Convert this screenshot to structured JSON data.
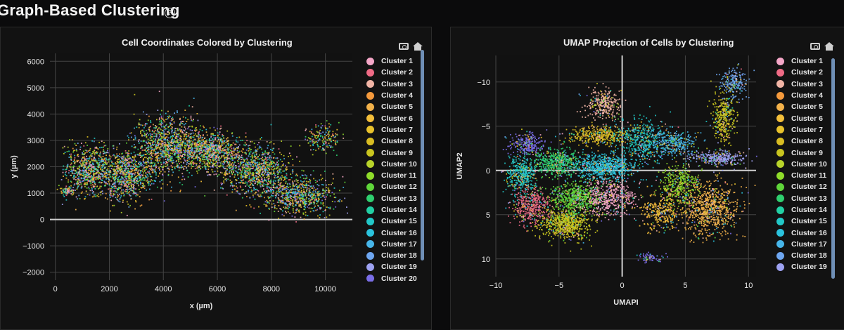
{
  "header": {
    "title": "Graph-Based Clustering",
    "help_icon": "?"
  },
  "legend_labels": [
    "Cluster 1",
    "Cluster 2",
    "Cluster 3",
    "Cluster 4",
    "Cluster 5",
    "Cluster 6",
    "Cluster 7",
    "Cluster 8",
    "Cluster 9",
    "Cluster 10",
    "Cluster 11",
    "Cluster 12",
    "Cluster 13",
    "Cluster 14",
    "Cluster 15",
    "Cluster 16",
    "Cluster 17",
    "Cluster 18",
    "Cluster 19",
    "Cluster 20"
  ],
  "palette": [
    "#f5a7c8",
    "#f06b86",
    "#f2b5a6",
    "#f59a3c",
    "#f3b24a",
    "#f4bf3a",
    "#e8c22c",
    "#d9bd22",
    "#c9c51f",
    "#b9d42a",
    "#8fdc2a",
    "#5fd63a",
    "#2fcf6f",
    "#22d0a4",
    "#22c8c8",
    "#2bc3dd",
    "#47b6ea",
    "#6ea6f0",
    "#9ea2f2",
    "#7a6ee8"
  ],
  "chart_data": [
    {
      "type": "scatter",
      "title": "Cell Coordinates Colored by Clustering",
      "xlabel": "x (µm)",
      "ylabel": "y (µm)",
      "xlim": [
        -200,
        11000
      ],
      "ylim": [
        6300,
        -2300
      ],
      "y_reversed": true,
      "x_ticks": [
        0,
        2000,
        4000,
        6000,
        8000,
        10000
      ],
      "y_ticks": [
        -2000,
        -1000,
        0,
        1000,
        2000,
        3000,
        4000,
        5000,
        6000
      ],
      "x_tick_labels": [
        "0",
        "2000",
        "4000",
        "6000",
        "8000",
        "10000"
      ],
      "y_tick_labels": [
        "−2000",
        "−1000",
        "0",
        "1000",
        "2000",
        "3000",
        "4000",
        "5000",
        "6000"
      ],
      "grid": true,
      "legend": "right",
      "visible_series": 20,
      "regions_xy": [
        {
          "cx": 1200,
          "cy": 1900,
          "rx": 900,
          "ry": 900,
          "n": 700
        },
        {
          "cx": 2600,
          "cy": 1700,
          "rx": 1000,
          "ry": 900,
          "n": 800
        },
        {
          "cx": 4200,
          "cy": 2800,
          "rx": 1300,
          "ry": 1100,
          "n": 1100
        },
        {
          "cx": 5800,
          "cy": 2600,
          "rx": 1000,
          "ry": 700,
          "n": 700
        },
        {
          "cx": 7400,
          "cy": 1900,
          "rx": 1300,
          "ry": 900,
          "n": 900
        },
        {
          "cx": 9000,
          "cy": 900,
          "rx": 1300,
          "ry": 700,
          "n": 700
        },
        {
          "cx": 9900,
          "cy": 3100,
          "rx": 600,
          "ry": 500,
          "n": 160
        },
        {
          "cx": 400,
          "cy": 1100,
          "rx": 300,
          "ry": 150,
          "n": 60
        }
      ]
    },
    {
      "type": "scatter",
      "title": "UMAP Projection of Cells by Clustering",
      "xlabel": "UMAPI",
      "ylabel": "UMAP2",
      "xlim": [
        -10,
        10.6
      ],
      "ylim": [
        -13,
        12
      ],
      "x_ticks": [
        -10,
        -5,
        0,
        5,
        10
      ],
      "y_ticks": [
        10,
        5,
        0,
        -5,
        -10
      ],
      "x_tick_labels": [
        "−10",
        "−5",
        "0",
        "5",
        "10"
      ],
      "y_tick_labels": [
        "10",
        "5",
        "0",
        "−5",
        "−10"
      ],
      "grid": true,
      "legend": "right",
      "visible_series": 19,
      "regions_xy": [
        {
          "cx": -7.2,
          "cy": 4.0,
          "rx": 1.4,
          "ry": 2.0,
          "c": 1,
          "n": 400
        },
        {
          "cx": -4.5,
          "cy": 6.0,
          "rx": 2.0,
          "ry": 1.7,
          "c": 8,
          "n": 700
        },
        {
          "cx": -3.8,
          "cy": 3.0,
          "rx": 2.0,
          "ry": 1.8,
          "c": 11,
          "n": 600
        },
        {
          "cx": -1.0,
          "cy": 3.0,
          "rx": 2.0,
          "ry": 2.0,
          "c": 0,
          "n": 500
        },
        {
          "cx": -8.0,
          "cy": 0.5,
          "rx": 1.2,
          "ry": 2.0,
          "c": 14,
          "n": 400
        },
        {
          "cx": -7.5,
          "cy": -3.0,
          "rx": 1.3,
          "ry": 1.3,
          "c": 19,
          "n": 250
        },
        {
          "cx": -5.2,
          "cy": -1.0,
          "rx": 1.8,
          "ry": 1.5,
          "c": 12,
          "n": 500
        },
        {
          "cx": -1.5,
          "cy": -0.5,
          "rx": 2.5,
          "ry": 1.4,
          "c": 15,
          "n": 700
        },
        {
          "cx": -1.8,
          "cy": -4.0,
          "rx": 2.4,
          "ry": 1.0,
          "c": 7,
          "n": 400
        },
        {
          "cx": -1.5,
          "cy": -7.5,
          "rx": 1.4,
          "ry": 1.8,
          "c": 2,
          "n": 300
        },
        {
          "cx": 1.5,
          "cy": -3.5,
          "rx": 2.0,
          "ry": 2.5,
          "c": 14,
          "n": 400
        },
        {
          "cx": 6.8,
          "cy": 4.2,
          "rx": 2.3,
          "ry": 3.0,
          "c": 4,
          "n": 800
        },
        {
          "cx": 4.5,
          "cy": 1.5,
          "rx": 1.5,
          "ry": 2.0,
          "c": 10,
          "n": 350
        },
        {
          "cx": 4.0,
          "cy": -3.0,
          "rx": 2.0,
          "ry": 1.5,
          "c": 16,
          "n": 350
        },
        {
          "cx": 7.5,
          "cy": -1.5,
          "rx": 2.2,
          "ry": 0.8,
          "c": 18,
          "n": 300
        },
        {
          "cx": 8.0,
          "cy": -6.0,
          "rx": 0.9,
          "ry": 3.0,
          "c": 8,
          "n": 350
        },
        {
          "cx": 8.8,
          "cy": -10.0,
          "rx": 1.0,
          "ry": 1.6,
          "c": 17,
          "n": 200
        },
        {
          "cx": 2.0,
          "cy": 9.8,
          "rx": 1.1,
          "ry": 0.6,
          "c": 19,
          "n": 60
        },
        {
          "cx": 3.0,
          "cy": 4.5,
          "rx": 1.6,
          "ry": 2.0,
          "c": 5,
          "n": 300
        }
      ]
    }
  ]
}
